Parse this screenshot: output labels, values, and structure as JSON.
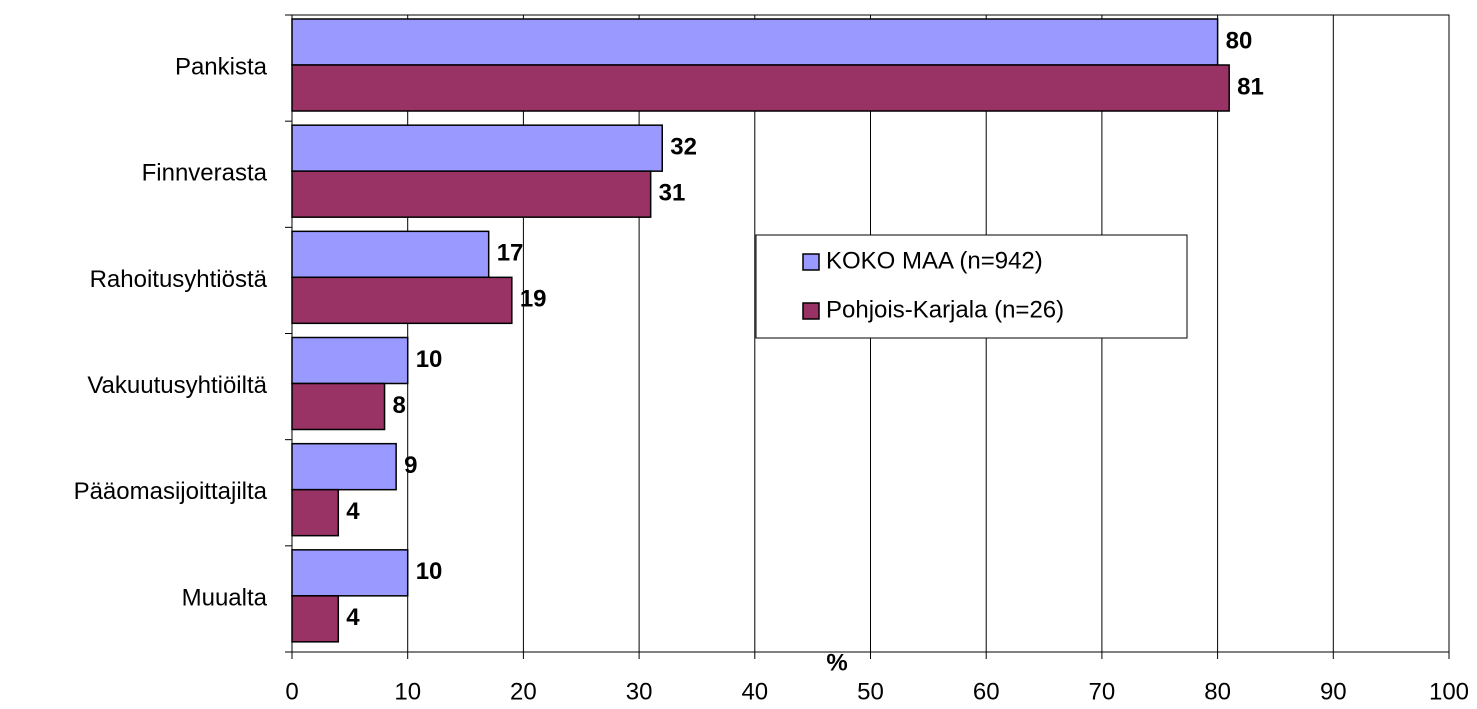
{
  "chart_data": {
    "type": "bar",
    "orientation": "horizontal",
    "categories": [
      "Pankista",
      "Finnverasta",
      "Rahoitusyhtiöstä",
      "Vakuutusyhtiöiltä",
      "Pääomasijoittajilta",
      "Muualta"
    ],
    "series": [
      {
        "name": "KOKO MAA (n=942)",
        "color": "#9999ff",
        "values": [
          80,
          32,
          17,
          10,
          9,
          10
        ]
      },
      {
        "name": "Pohjois-Karjala (n=26)",
        "color": "#993366",
        "values": [
          81,
          31,
          19,
          8,
          4,
          4
        ]
      }
    ],
    "xlabel": "%",
    "xlim": [
      0,
      100
    ],
    "xticks": [
      0,
      10,
      20,
      30,
      40,
      50,
      60,
      70,
      80,
      90,
      100
    ],
    "grid": true,
    "legend": "right"
  }
}
